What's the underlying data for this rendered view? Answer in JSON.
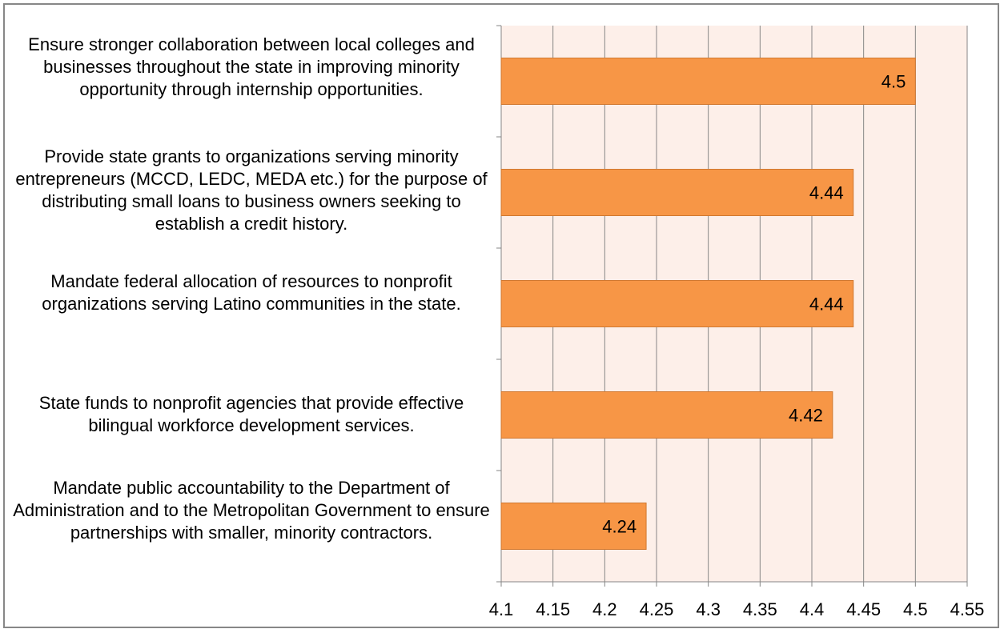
{
  "chart_data": {
    "type": "bar",
    "orientation": "horizontal",
    "categories": [
      "Ensure stronger collaboration between local colleges and businesses throughout the state in improving minority opportunity through internship opportunities.",
      "Provide state grants to organizations serving minority entrepreneurs (MCCD, LEDC, MEDA etc.) for the purpose of distributing small loans to business owners seeking to establish a credit history.",
      "Mandate federal allocation of resources to nonprofit organizations serving Latino communities in the state.",
      "State funds to nonprofit agencies that provide effective bilingual workforce development services.",
      "Mandate public accountability to the Department of Administration and to the Metropolitan Government to ensure partnerships with smaller, minority contractors."
    ],
    "values": [
      4.5,
      4.44,
      4.44,
      4.42,
      4.24
    ],
    "data_labels": [
      "4.5",
      "4.44",
      "4.44",
      "4.42",
      "4.24"
    ],
    "x_ticks": [
      "4.1",
      "4.15",
      "4.2",
      "4.25",
      "4.3",
      "4.35",
      "4.4",
      "4.45",
      "4.5",
      "4.55"
    ],
    "xlim": [
      4.1,
      4.55
    ],
    "grid": "vertical",
    "legend": "none",
    "colors": {
      "bar": "#F79646",
      "bar_border": "#D07830",
      "plot_background": "#FDEFE9",
      "gridline": "#868686",
      "frame": "#878787"
    }
  }
}
